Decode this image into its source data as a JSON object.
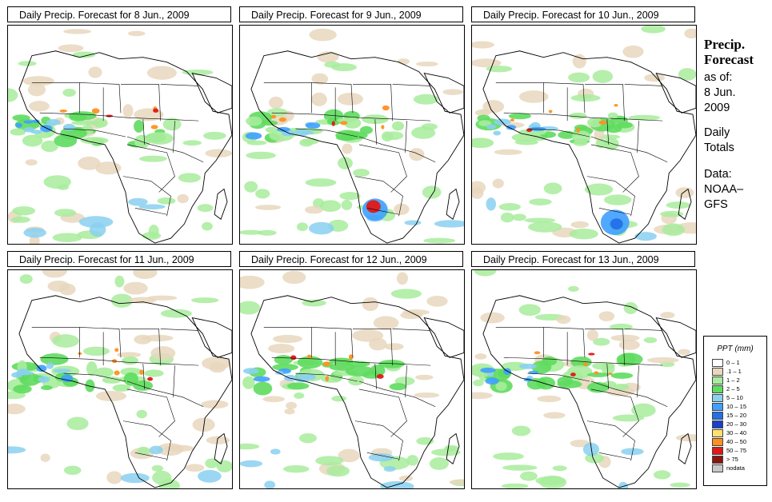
{
  "panels": [
    {
      "title": "Daily Precip. Forecast for  8 Jun., 2009"
    },
    {
      "title": "Daily Precip. Forecast for  9 Jun., 2009"
    },
    {
      "title": "Daily Precip. Forecast for  10 Jun., 2009"
    },
    {
      "title": "Daily Precip. Forecast for  11 Jun., 2009"
    },
    {
      "title": "Daily Precip. Forecast for  12 Jun., 2009"
    },
    {
      "title": "Daily Precip. Forecast for  13 Jun., 2009"
    }
  ],
  "side": {
    "heading1": "Precip.",
    "heading2": "Forecast",
    "asof1": "as of:",
    "asof2": "8 Jun.",
    "asof3": "2009",
    "daily1": "Daily",
    "daily2": "Totals",
    "data1": "Data:",
    "data2": "NOAA–",
    "data3": "GFS"
  },
  "legend": {
    "title": "PPT (mm)",
    "items": [
      {
        "label": "0 – 1",
        "color": "#ffffff"
      },
      {
        "label": ".1 – 1",
        "color": "#e8d7bd"
      },
      {
        "label": "1 – 2",
        "color": "#a8ec9c"
      },
      {
        "label": "2 – 5",
        "color": "#5edc5e"
      },
      {
        "label": "5 – 10",
        "color": "#8ad0f0"
      },
      {
        "label": "10 – 15",
        "color": "#3ea0ff"
      },
      {
        "label": "15 – 20",
        "color": "#2370e8"
      },
      {
        "label": "20 – 30",
        "color": "#1840c8"
      },
      {
        "label": "30 – 40",
        "color": "#ffe070"
      },
      {
        "label": "40 – 50",
        "color": "#ff9020"
      },
      {
        "label": "50 – 75",
        "color": "#e01818"
      },
      {
        "label": "> 75",
        "color": "#8a1410"
      },
      {
        "label": "nodata",
        "color": "#c8c8c8"
      }
    ]
  }
}
